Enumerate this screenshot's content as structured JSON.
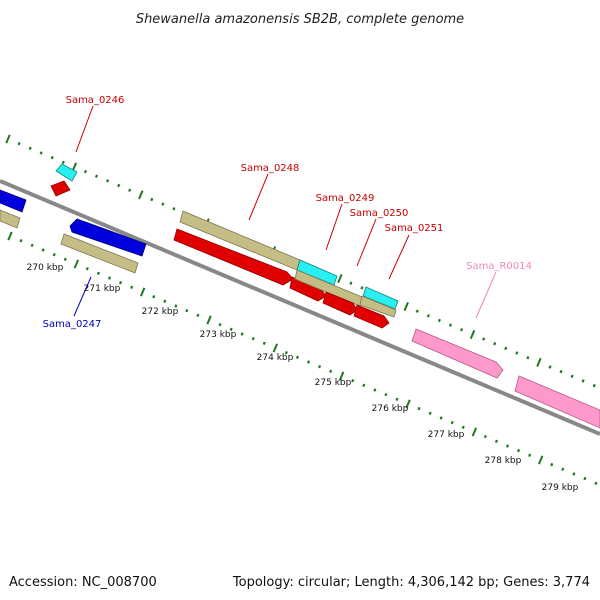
{
  "title": "Shewanella amazonensis SB2B, complete genome",
  "accession": "Accession: NC_008700",
  "summary": "Topology: circular; Length: 4,306,142 bp; Genes: 3,774",
  "colors": {
    "backbone": "#888888",
    "ticks": "#1e7a1e",
    "forward_cds": "#d00000",
    "reverse_cds": "#0000cc",
    "gene_track": "#c4bd86",
    "trna": "#28f0f0",
    "rrna": "#ff99cc",
    "label_forward": "#cc0000",
    "label_reverse": "#0000bb",
    "label_rrna": "#ee88bb"
  },
  "tick_labels": [
    "270 kbp",
    "271 kbp",
    "272 kbp",
    "273 kbp",
    "274 kbp",
    "275 kbp",
    "276 kbp",
    "277 kbp",
    "278 kbp",
    "279 kbp"
  ],
  "gene_labels": [
    {
      "id": "sama-0246",
      "text": "Sama_0246",
      "color": "label_forward"
    },
    {
      "id": "sama-0247",
      "text": "Sama_0247",
      "color": "label_reverse"
    },
    {
      "id": "sama-0248",
      "text": "Sama_0248",
      "color": "label_forward"
    },
    {
      "id": "sama-0249",
      "text": "Sama_0249",
      "color": "label_forward"
    },
    {
      "id": "sama-0250",
      "text": "Sama_0250",
      "color": "label_forward"
    },
    {
      "id": "sama-0251",
      "text": "Sama_0251",
      "color": "label_forward"
    },
    {
      "id": "sama-r0014",
      "text": "Sama_R0014",
      "color": "label_rrna"
    }
  ]
}
